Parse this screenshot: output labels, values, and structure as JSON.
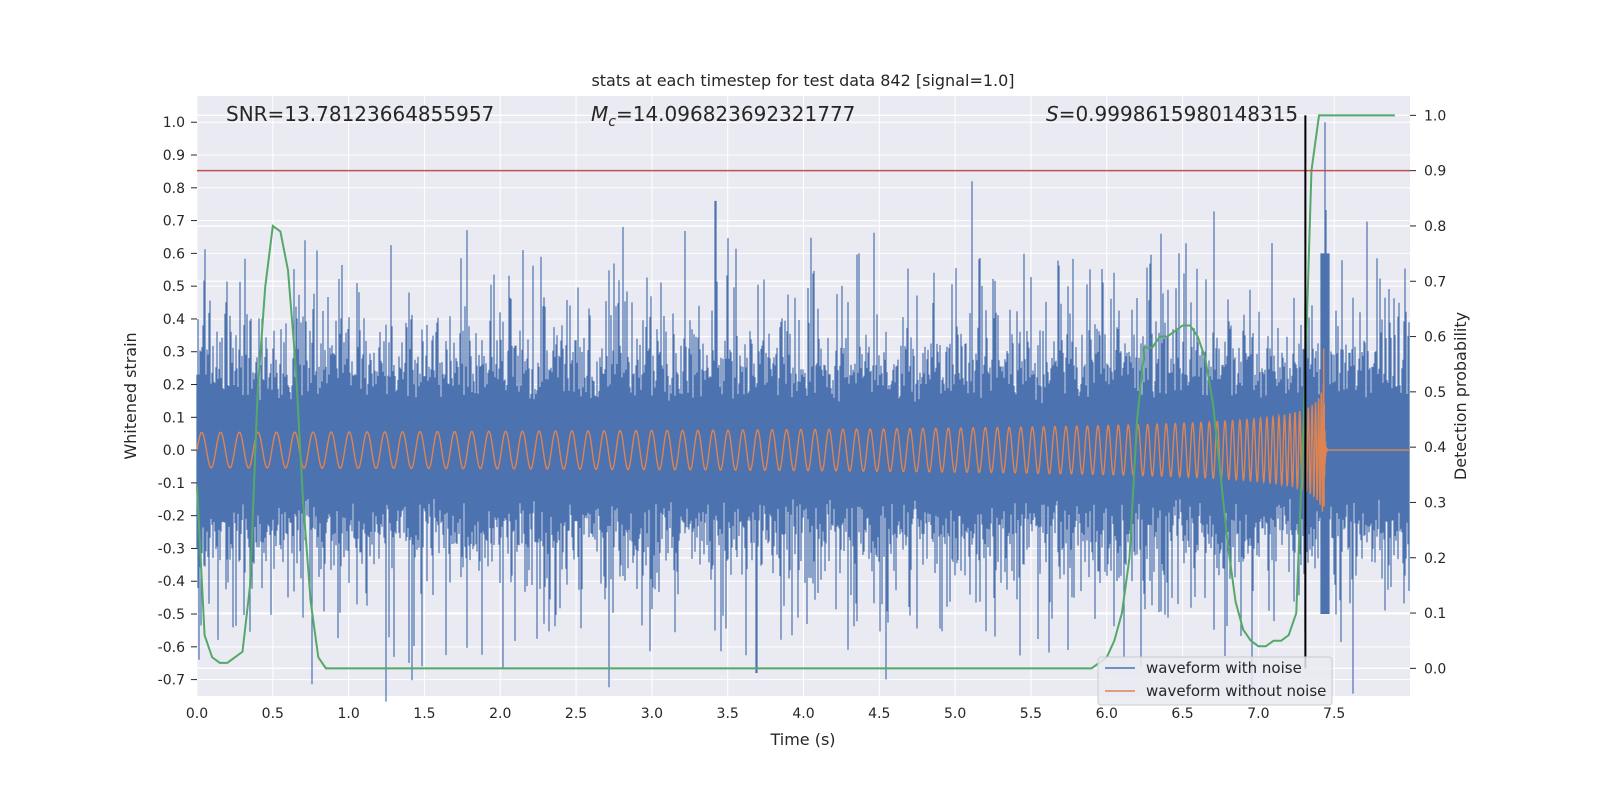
{
  "chart_data": {
    "type": "line",
    "title": "stats at each timestep for test data 842 [signal=1.0]",
    "xlabel": "Time (s)",
    "ylabel_left": "Whitened strain",
    "ylabel_right": "Detection probability",
    "xlim": [
      0.0,
      8.0
    ],
    "ylim_left": [
      -0.75,
      1.08
    ],
    "ylim_right": [
      -0.05,
      1.035
    ],
    "x_ticks": [
      "0.0",
      "0.5",
      "1.0",
      "1.5",
      "2.0",
      "2.5",
      "3.0",
      "3.5",
      "4.0",
      "4.5",
      "5.0",
      "5.5",
      "6.0",
      "6.5",
      "7.0",
      "7.5"
    ],
    "y_left_ticks": [
      "-0.7",
      "-0.6",
      "-0.5",
      "-0.4",
      "-0.3",
      "-0.2",
      "-0.1",
      "0.0",
      "0.1",
      "0.2",
      "0.3",
      "0.4",
      "0.5",
      "0.6",
      "0.7",
      "0.8",
      "0.9",
      "1.0"
    ],
    "y_right_ticks": [
      "0.0",
      "0.1",
      "0.2",
      "0.3",
      "0.4",
      "0.5",
      "0.6",
      "0.7",
      "0.8",
      "0.9",
      "1.0"
    ],
    "grid": true,
    "legend_position": "lower-right",
    "annotations": {
      "snr": "SNR=13.78123664855957",
      "mc": "=14.096823692321777",
      "mc_symbol": "M",
      "mc_subscript": "c",
      "s": "=0.9998615980148315",
      "s_symbol": "S"
    },
    "threshold_right": 0.9,
    "vertical_line_x": 7.31,
    "series": [
      {
        "name": "waveform with noise",
        "color": "#4c72b0",
        "envelope_typical": 0.32,
        "notable_peaks": [
          {
            "x": 3.42,
            "y": 0.76
          },
          {
            "x": 5.11,
            "y": 0.82
          },
          {
            "x": 7.44,
            "y": 1.0
          },
          {
            "x": 3.69,
            "y": -0.68
          }
        ]
      },
      {
        "name": "waveform without noise",
        "color": "#dd8452",
        "chirp_merger_x": 7.44,
        "peak_amplitude": 0.38
      },
      {
        "name": "",
        "axis": "right",
        "color": "#55a868",
        "x": [
          0.0,
          0.05,
          0.1,
          0.15,
          0.2,
          0.25,
          0.3,
          0.35,
          0.4,
          0.45,
          0.5,
          0.55,
          0.6,
          0.65,
          0.7,
          0.75,
          0.8,
          0.85,
          0.9,
          1.0,
          2.0,
          3.0,
          4.0,
          5.0,
          5.5,
          5.9,
          6.0,
          6.05,
          6.1,
          6.15,
          6.2,
          6.25,
          6.3,
          6.35,
          6.4,
          6.45,
          6.5,
          6.55,
          6.6,
          6.65,
          6.7,
          6.75,
          6.8,
          6.85,
          6.9,
          6.95,
          7.0,
          7.05,
          7.1,
          7.15,
          7.2,
          7.25,
          7.3,
          7.35,
          7.4,
          7.45,
          7.5,
          7.6,
          7.7,
          7.8,
          7.9
        ],
        "y": [
          0.33,
          0.06,
          0.02,
          0.01,
          0.01,
          0.02,
          0.03,
          0.15,
          0.5,
          0.69,
          0.8,
          0.79,
          0.72,
          0.55,
          0.3,
          0.12,
          0.02,
          0.0,
          0.0,
          0.0,
          0.0,
          0.0,
          0.0,
          0.0,
          0.0,
          0.0,
          0.02,
          0.05,
          0.1,
          0.2,
          0.45,
          0.58,
          0.58,
          0.6,
          0.6,
          0.61,
          0.62,
          0.62,
          0.6,
          0.56,
          0.48,
          0.35,
          0.22,
          0.12,
          0.07,
          0.05,
          0.04,
          0.04,
          0.05,
          0.05,
          0.06,
          0.1,
          0.45,
          0.9,
          1.0,
          1.0,
          1.0,
          1.0,
          1.0,
          1.0,
          1.0
        ]
      }
    ]
  },
  "legend": {
    "noise_label": "waveform with noise",
    "clean_label": "waveform without noise"
  }
}
